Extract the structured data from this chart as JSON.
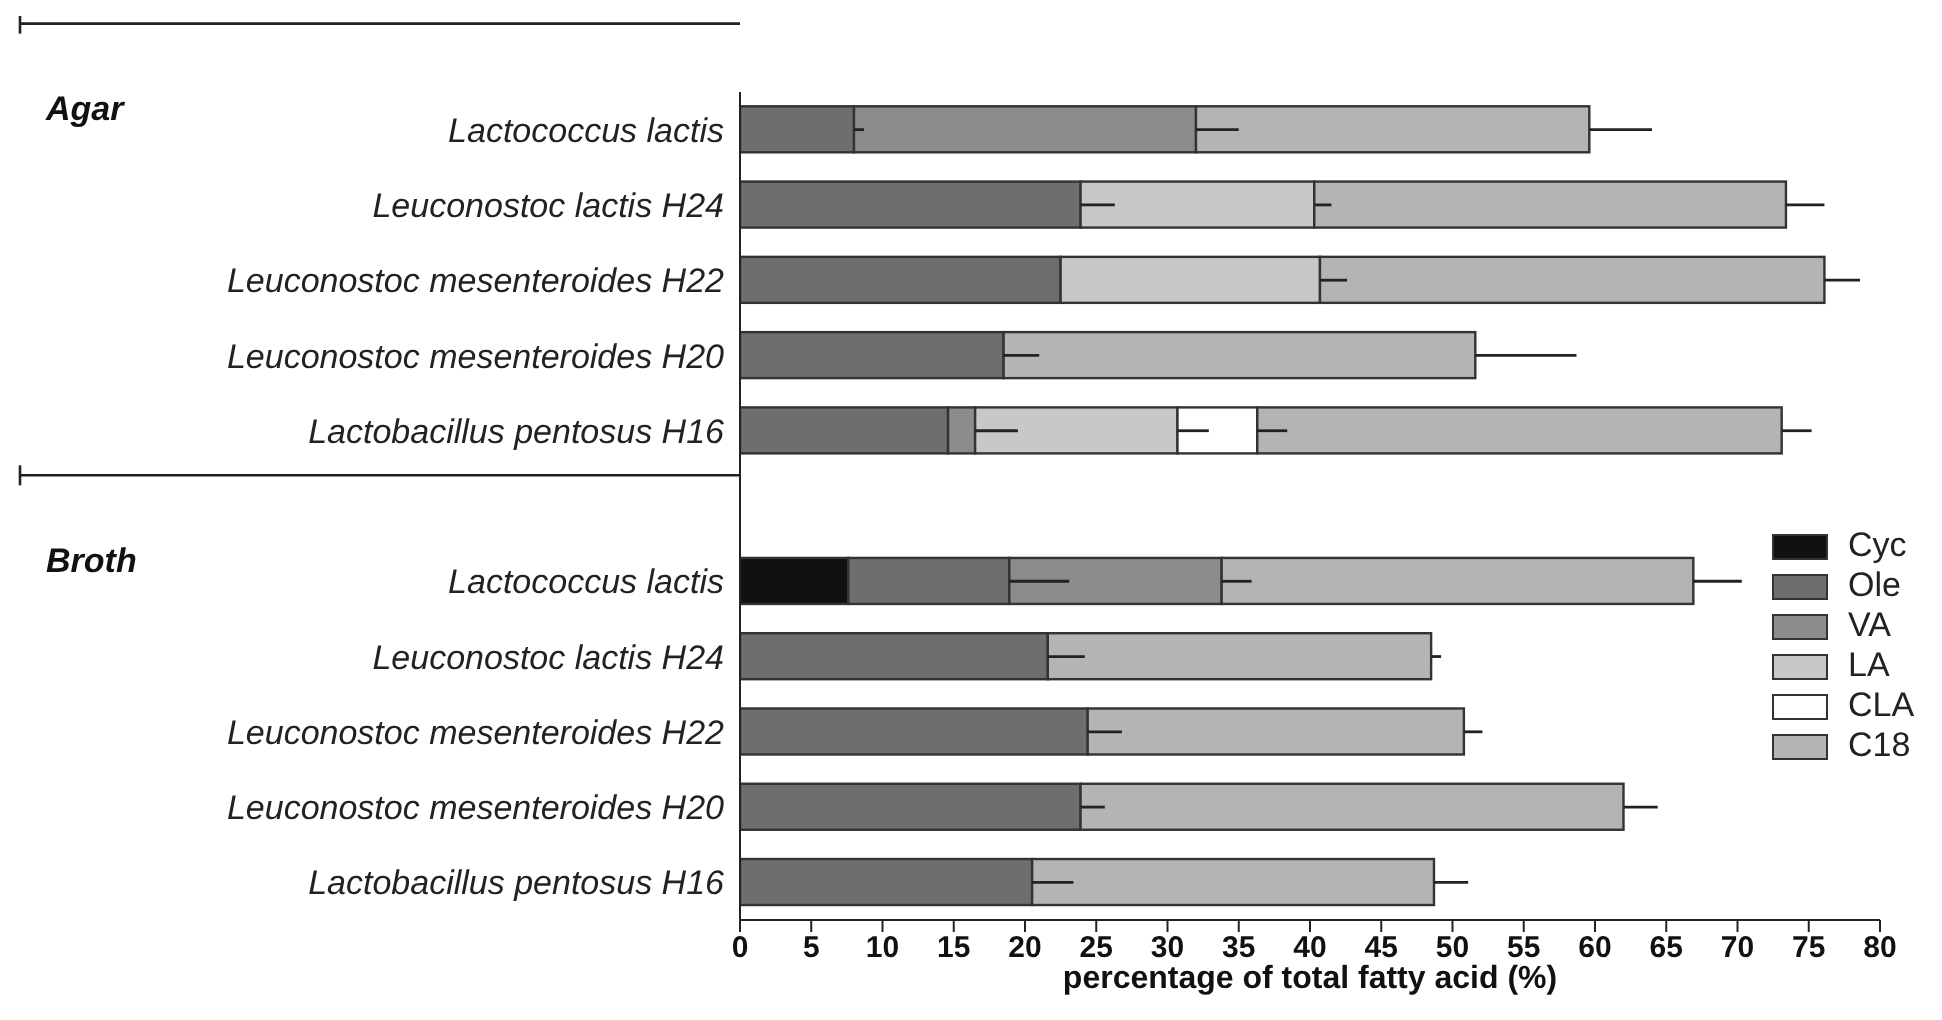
{
  "chart_data": {
    "type": "bar",
    "orientation": "horizontal",
    "stacked": true,
    "xlabel": "percentage of total fatty acid (%)",
    "categories": [
      "Lactococcus lactis",
      "Leuconostoc lactis H24",
      "Leuconostoc mesenteroides H22",
      "Leuconostoc mesenteroides H20",
      "Lactobacillus pentosus H16",
      null,
      "Lactococcus lactis",
      "Leuconostoc lactis H24",
      "Leuconostoc mesenteroides H22",
      "Leuconostoc mesenteroides H20",
      "Lactobacillus pentosus H16"
    ],
    "series": [
      {
        "name": "Cyc",
        "color": "#111111",
        "values": [
          null,
          null,
          null,
          null,
          null,
          null,
          7.6,
          null,
          null,
          null,
          null
        ]
      },
      {
        "name": "Ole",
        "color": "#6e6e6e",
        "values": [
          8.0,
          23.9,
          22.5,
          18.5,
          14.6,
          null,
          11.3,
          21.6,
          24.4,
          23.9,
          20.5
        ],
        "errors": [
          [
            8.0,
            8.7
          ],
          [
            23.9,
            26.3
          ],
          null,
          [
            18.5,
            21.0
          ],
          null,
          null,
          [
            18.9,
            23.1
          ],
          [
            21.6,
            24.2
          ],
          [
            24.4,
            26.8
          ],
          [
            23.9,
            25.6
          ],
          [
            20.5,
            23.4
          ]
        ]
      },
      {
        "name": "VA",
        "color": "#8c8c8c",
        "values": [
          24.0,
          null,
          null,
          null,
          1.9,
          null,
          14.9,
          null,
          null,
          null,
          null
        ],
        "errors": [
          [
            32.0,
            35.0
          ],
          null,
          null,
          null,
          [
            16.5,
            19.5
          ],
          null,
          [
            33.8,
            35.9
          ],
          null,
          null,
          null,
          null
        ]
      },
      {
        "name": "LA",
        "color": "#c8c8c8",
        "values": [
          null,
          16.4,
          18.2,
          null,
          14.2,
          null,
          null,
          null,
          null,
          null,
          null
        ],
        "errors": [
          null,
          [
            40.3,
            41.5
          ],
          [
            40.7,
            42.6
          ],
          null,
          [
            30.7,
            32.9
          ],
          null,
          null,
          null,
          null,
          null,
          null
        ]
      },
      {
        "name": "CLA",
        "color": "#ffffff",
        "values": [
          null,
          null,
          null,
          null,
          5.6,
          null,
          null,
          null,
          null,
          null,
          null
        ],
        "errors": [
          null,
          null,
          null,
          null,
          [
            36.3,
            38.4
          ],
          null,
          null,
          null,
          null,
          null,
          null
        ]
      },
      {
        "name": "C18",
        "color": "#b4b4b4",
        "values": [
          27.6,
          33.1,
          35.4,
          33.1,
          36.8,
          null,
          33.1,
          26.9,
          26.4,
          38.1,
          28.2
        ],
        "errors": [
          [
            59.6,
            64.0
          ],
          [
            73.4,
            76.1
          ],
          [
            76.1,
            78.6
          ],
          [
            51.6,
            58.7
          ],
          [
            73.1,
            75.2
          ],
          null,
          [
            66.9,
            70.3
          ],
          [
            48.5,
            49.2
          ],
          [
            50.8,
            52.1
          ],
          [
            62.0,
            64.4
          ],
          [
            48.7,
            51.1
          ]
        ]
      }
    ],
    "xlim": [
      0,
      80
    ],
    "xticks": [
      0,
      5,
      10,
      15,
      20,
      25,
      30,
      35,
      40,
      45,
      50,
      55,
      60,
      65,
      70,
      75,
      80
    ],
    "annotations": [
      "Agar",
      "Broth"
    ],
    "legend": "bottom right"
  }
}
